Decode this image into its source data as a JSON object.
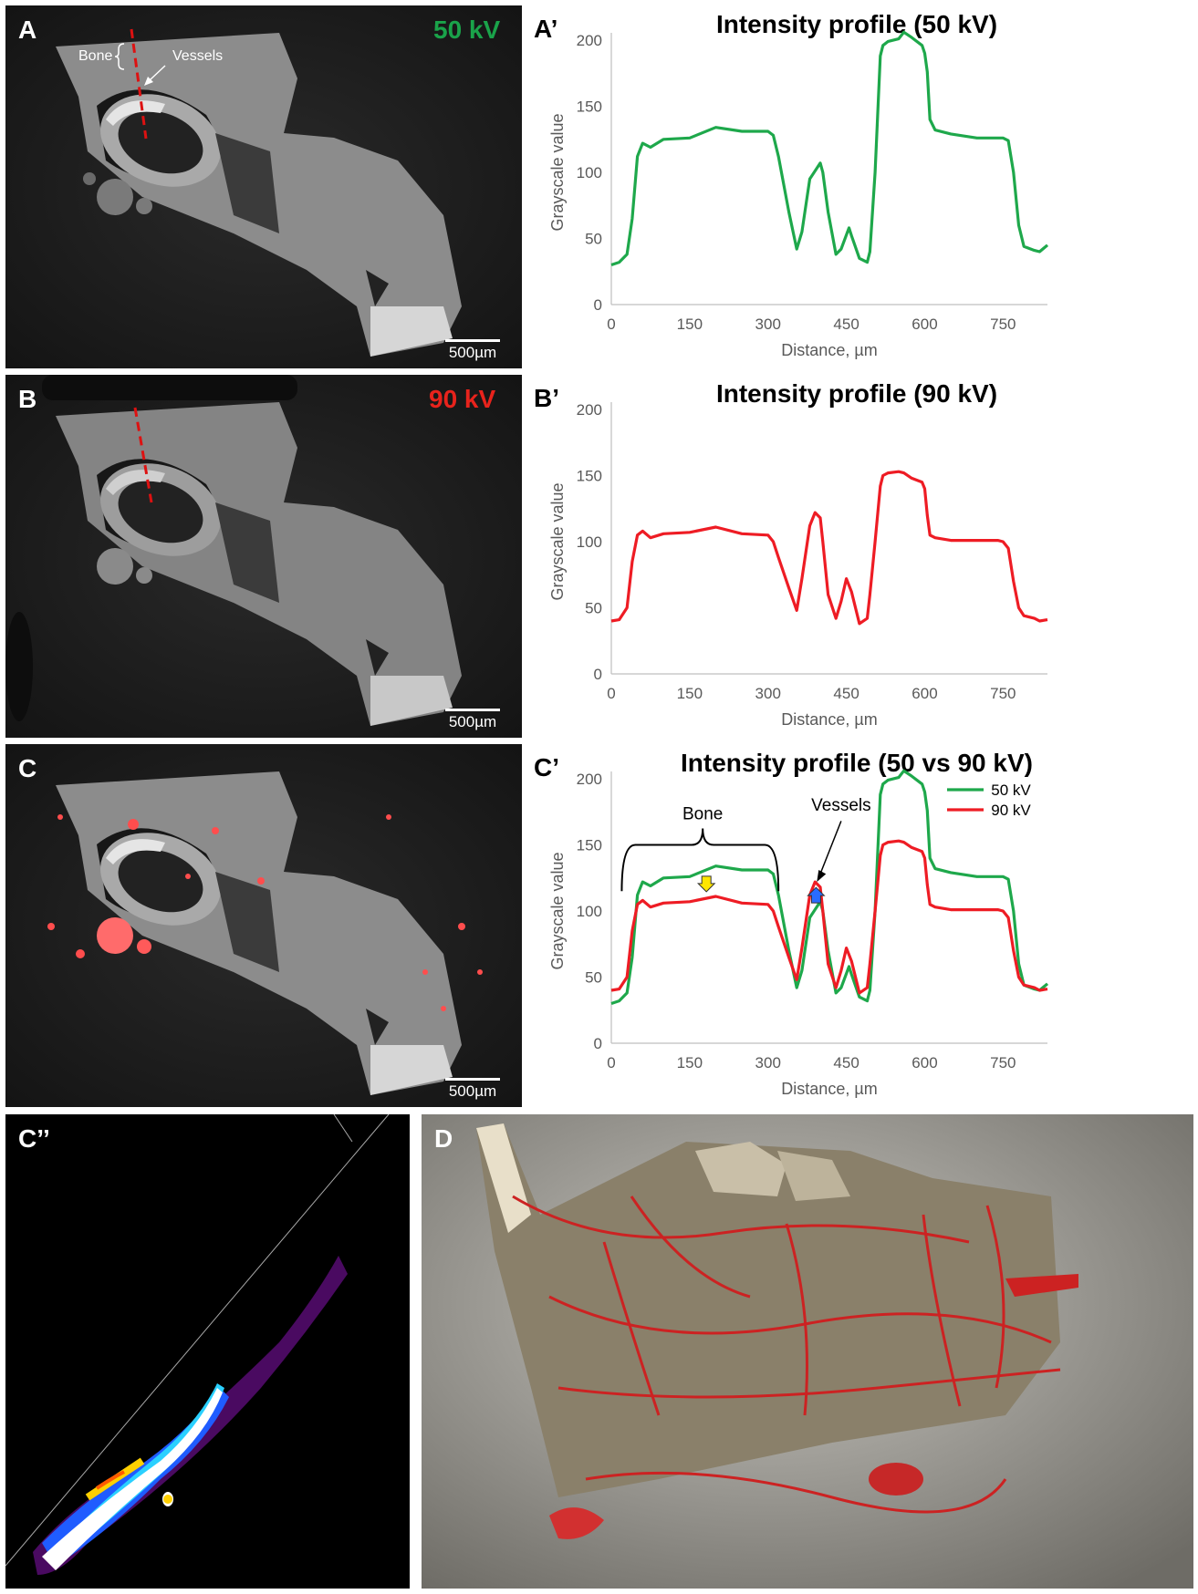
{
  "panels": {
    "A": {
      "letter": "A",
      "kv": "50 kV",
      "kv_color": "#1aa34a",
      "scale": "500µm",
      "bone_label": "Bone",
      "vessels_label": "Vessels"
    },
    "B": {
      "letter": "B",
      "kv": "90 kV",
      "kv_color": "#e8231c",
      "scale": "500µm"
    },
    "C": {
      "letter": "C",
      "scale": "500µm"
    },
    "Cpp": {
      "letter": "C’’"
    },
    "D": {
      "letter": "D"
    }
  },
  "colors": {
    "green": "#1ea84b",
    "red": "#ee1c24"
  },
  "chart_data": [
    {
      "id": "A-prime",
      "letter": "A’",
      "type": "line",
      "title": "Intensity profile (50 kV)",
      "xlabel": "Distance, µm",
      "ylabel": "Grayscale value",
      "xlim": [
        0,
        835
      ],
      "ylim": [
        0,
        200
      ],
      "xticks": [
        "0",
        "150",
        "300",
        "450",
        "600",
        "750"
      ],
      "yticks": [
        "0",
        "50",
        "100",
        "150",
        "200"
      ],
      "series": [
        {
          "color": "#1ea84b",
          "x": [
            0,
            15,
            30,
            40,
            50,
            60,
            75,
            100,
            150,
            200,
            250,
            300,
            310,
            320,
            340,
            355,
            365,
            380,
            400,
            405,
            415,
            430,
            440,
            455,
            460,
            475,
            490,
            495,
            505,
            515,
            520,
            530,
            550,
            560,
            575,
            595,
            600,
            605,
            610,
            620,
            650,
            700,
            740,
            750,
            760,
            770,
            780,
            790,
            810,
            820,
            835
          ],
          "y": [
            30,
            32,
            38,
            65,
            112,
            122,
            119,
            125,
            126,
            134,
            131,
            131,
            128,
            112,
            70,
            42,
            55,
            95,
            107,
            100,
            70,
            38,
            42,
            58,
            52,
            35,
            32,
            40,
            100,
            188,
            196,
            199,
            201,
            206,
            202,
            196,
            190,
            176,
            140,
            132,
            129,
            126,
            126,
            126,
            124,
            100,
            60,
            44,
            41,
            40,
            45
          ]
        }
      ]
    },
    {
      "id": "B-prime",
      "letter": "B’",
      "type": "line",
      "title": "Intensity profile (90 kV)",
      "xlabel": "Distance, µm",
      "ylabel": "Grayscale value",
      "xlim": [
        0,
        835
      ],
      "ylim": [
        0,
        200
      ],
      "xticks": [
        "0",
        "150",
        "300",
        "450",
        "600",
        "750"
      ],
      "yticks": [
        "0",
        "50",
        "100",
        "150",
        "200"
      ],
      "series": [
        {
          "color": "#ee1c24",
          "x": [
            0,
            15,
            30,
            40,
            50,
            60,
            75,
            100,
            150,
            200,
            250,
            300,
            310,
            320,
            340,
            355,
            365,
            380,
            390,
            400,
            405,
            415,
            430,
            440,
            450,
            460,
            475,
            490,
            495,
            505,
            515,
            520,
            530,
            550,
            560,
            575,
            595,
            600,
            605,
            610,
            620,
            650,
            700,
            740,
            750,
            760,
            770,
            780,
            790,
            810,
            820,
            835
          ],
          "y": [
            40,
            41,
            50,
            85,
            105,
            108,
            103,
            106,
            107,
            111,
            106,
            105,
            100,
            88,
            65,
            48,
            72,
            112,
            122,
            118,
            100,
            60,
            42,
            55,
            72,
            62,
            38,
            42,
            60,
            100,
            142,
            150,
            152,
            153,
            152,
            148,
            145,
            140,
            120,
            105,
            103,
            101,
            101,
            101,
            100,
            95,
            70,
            50,
            44,
            42,
            40,
            41
          ]
        }
      ]
    },
    {
      "id": "C-prime",
      "letter": "C’",
      "type": "line",
      "title": "Intensity profile (50 vs 90 kV)",
      "xlabel": "Distance, µm",
      "ylabel": "Grayscale value",
      "xlim": [
        0,
        835
      ],
      "ylim": [
        0,
        200
      ],
      "xticks": [
        "0",
        "150",
        "300",
        "450",
        "600",
        "750"
      ],
      "yticks": [
        "0",
        "50",
        "100",
        "150",
        "200"
      ],
      "legend_position": "top-right",
      "annotations": {
        "bone": "Bone",
        "vessels": "Vessels"
      },
      "series": [
        {
          "name": "50 kV",
          "color": "#1ea84b",
          "x": [
            0,
            15,
            30,
            40,
            50,
            60,
            75,
            100,
            150,
            200,
            250,
            300,
            310,
            320,
            340,
            355,
            365,
            380,
            400,
            405,
            415,
            430,
            440,
            455,
            460,
            475,
            490,
            495,
            505,
            515,
            520,
            530,
            550,
            560,
            575,
            595,
            600,
            605,
            610,
            620,
            650,
            700,
            740,
            750,
            760,
            770,
            780,
            790,
            810,
            820,
            835
          ],
          "y": [
            30,
            32,
            38,
            65,
            112,
            122,
            119,
            125,
            126,
            134,
            131,
            131,
            128,
            112,
            70,
            42,
            55,
            95,
            107,
            100,
            70,
            38,
            42,
            58,
            52,
            35,
            32,
            40,
            100,
            188,
            196,
            199,
            201,
            206,
            202,
            196,
            190,
            176,
            140,
            132,
            129,
            126,
            126,
            126,
            124,
            100,
            60,
            44,
            41,
            40,
            45
          ]
        },
        {
          "name": "90 kV",
          "color": "#ee1c24",
          "x": [
            0,
            15,
            30,
            40,
            50,
            60,
            75,
            100,
            150,
            200,
            250,
            300,
            310,
            320,
            340,
            355,
            365,
            380,
            390,
            400,
            405,
            415,
            430,
            440,
            450,
            460,
            475,
            490,
            495,
            505,
            515,
            520,
            530,
            550,
            560,
            575,
            595,
            600,
            605,
            610,
            620,
            650,
            700,
            740,
            750,
            760,
            770,
            780,
            790,
            810,
            820,
            835
          ],
          "y": [
            40,
            41,
            50,
            85,
            105,
            108,
            103,
            106,
            107,
            111,
            106,
            105,
            100,
            88,
            65,
            48,
            72,
            112,
            122,
            118,
            100,
            60,
            42,
            55,
            72,
            62,
            38,
            42,
            60,
            100,
            142,
            150,
            152,
            153,
            152,
            148,
            145,
            140,
            120,
            105,
            103,
            101,
            101,
            101,
            100,
            95,
            70,
            50,
            44,
            42,
            40,
            41
          ]
        }
      ]
    }
  ]
}
